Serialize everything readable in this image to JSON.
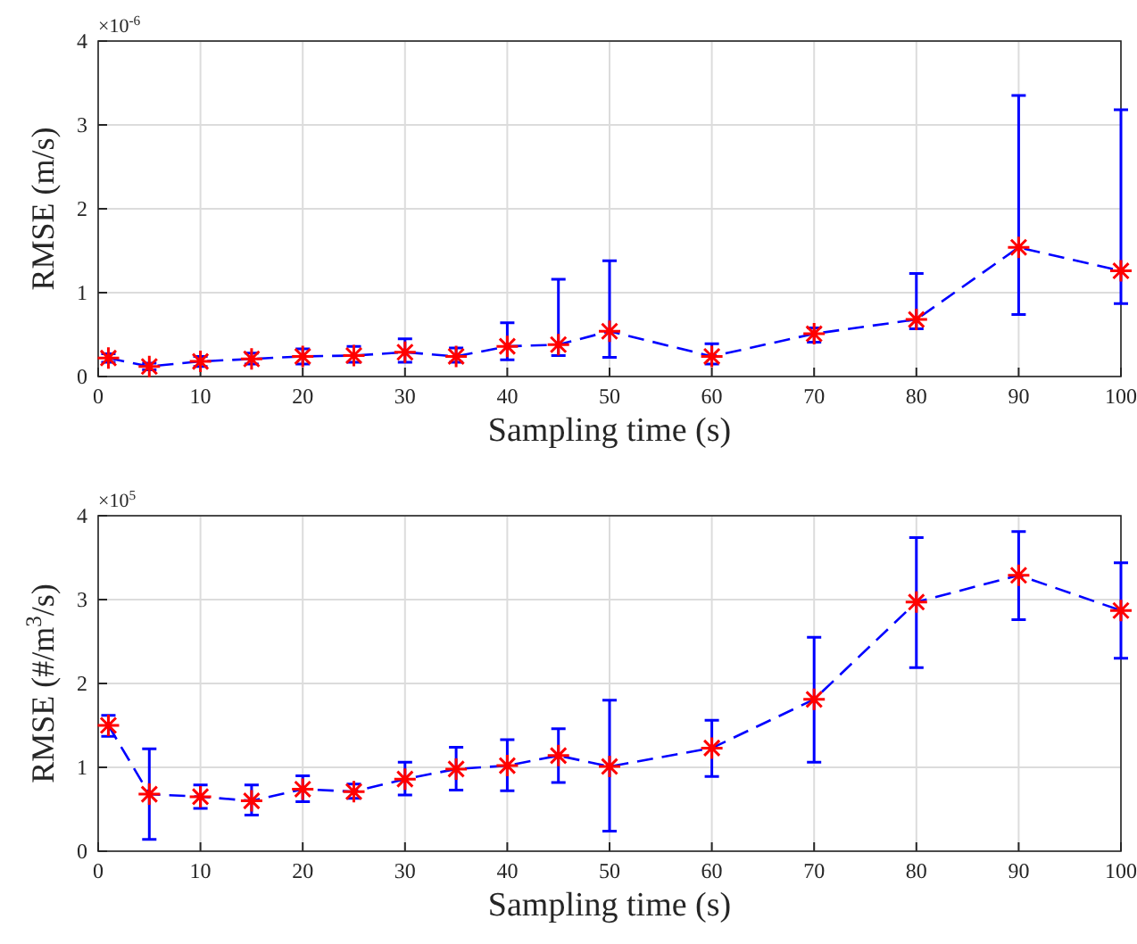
{
  "chart_data": [
    {
      "type": "line",
      "xlabel": "Sampling time (s)",
      "ylabel": "RMSE (m/s)",
      "annotations": [
        "×10$^{-6}$"
      ],
      "x": [
        1,
        5,
        10,
        15,
        20,
        25,
        30,
        35,
        40,
        45,
        50,
        60,
        70,
        80,
        90,
        100
      ],
      "xlim": [
        0,
        100
      ],
      "xticks": [
        0,
        10,
        20,
        30,
        40,
        50,
        60,
        70,
        80,
        90,
        100
      ],
      "ylim": [
        0,
        4
      ],
      "yticks": [
        0,
        1,
        2,
        3,
        4
      ],
      "grid": true,
      "series": [
        {
          "color": "#0000ff",
          "line_style": "dashed",
          "values": [
            0.22,
            0.12,
            0.18,
            0.21,
            0.24,
            0.25,
            0.29,
            0.24,
            0.36,
            0.38,
            0.54,
            0.24,
            0.51,
            0.68,
            1.54,
            1.26
          ],
          "errors": [
            [
              0.17,
              0.27
            ],
            [
              0.08,
              0.16
            ],
            [
              0.12,
              0.24
            ],
            [
              0.15,
              0.28
            ],
            [
              0.15,
              0.33
            ],
            [
              0.17,
              0.36
            ],
            [
              0.17,
              0.45
            ],
            [
              0.17,
              0.34
            ],
            [
              0.2,
              0.64
            ],
            [
              0.25,
              1.16
            ],
            [
              0.23,
              1.38
            ],
            [
              0.15,
              0.39
            ],
            [
              0.41,
              0.58
            ],
            [
              0.57,
              1.23
            ],
            [
              0.74,
              3.35
            ],
            [
              0.87,
              3.18
            ]
          ]
        },
        {
          "type": "scatter",
          "color": "#ff0000",
          "marker": "cross",
          "values": [
            0.22,
            0.12,
            0.18,
            0.21,
            0.24,
            0.25,
            0.29,
            0.24,
            0.36,
            0.38,
            0.54,
            0.24,
            0.51,
            0.68,
            1.54,
            1.26
          ]
        }
      ]
    },
    {
      "type": "line",
      "xlabel": "Sampling time (s)",
      "ylabel": "RMSE (#/m$^{3}$/s)",
      "annotations": [
        "×10$^{5}$"
      ],
      "x": [
        1,
        5,
        10,
        15,
        20,
        25,
        30,
        35,
        40,
        45,
        50,
        60,
        70,
        80,
        90,
        100
      ],
      "xlim": [
        0,
        100
      ],
      "xticks": [
        0,
        10,
        20,
        30,
        40,
        50,
        60,
        70,
        80,
        90,
        100
      ],
      "ylim": [
        0,
        4
      ],
      "yticks": [
        0,
        1,
        2,
        3,
        4
      ],
      "grid": true,
      "series": [
        {
          "color": "#0000ff",
          "line_style": "dashed",
          "values": [
            1.5,
            0.68,
            0.65,
            0.6,
            0.74,
            0.71,
            0.86,
            0.98,
            1.02,
            1.14,
            1.01,
            1.23,
            1.81,
            2.97,
            3.29,
            2.87
          ],
          "errors": [
            [
              1.37,
              1.62
            ],
            [
              0.14,
              1.22
            ],
            [
              0.51,
              0.79
            ],
            [
              0.43,
              0.79
            ],
            [
              0.59,
              0.9
            ],
            [
              0.63,
              0.8
            ],
            [
              0.67,
              1.06
            ],
            [
              0.73,
              1.24
            ],
            [
              0.72,
              1.33
            ],
            [
              0.82,
              1.46
            ],
            [
              0.24,
              1.8
            ],
            [
              0.89,
              1.56
            ],
            [
              1.06,
              2.55
            ],
            [
              2.19,
              3.74
            ],
            [
              2.76,
              3.81
            ],
            [
              2.3,
              3.44
            ]
          ]
        },
        {
          "type": "scatter",
          "color": "#ff0000",
          "marker": "cross",
          "values": [
            1.5,
            0.68,
            0.65,
            0.6,
            0.74,
            0.71,
            0.86,
            0.98,
            1.02,
            1.14,
            1.01,
            1.23,
            1.81,
            2.97,
            3.29,
            2.87
          ]
        }
      ]
    }
  ]
}
